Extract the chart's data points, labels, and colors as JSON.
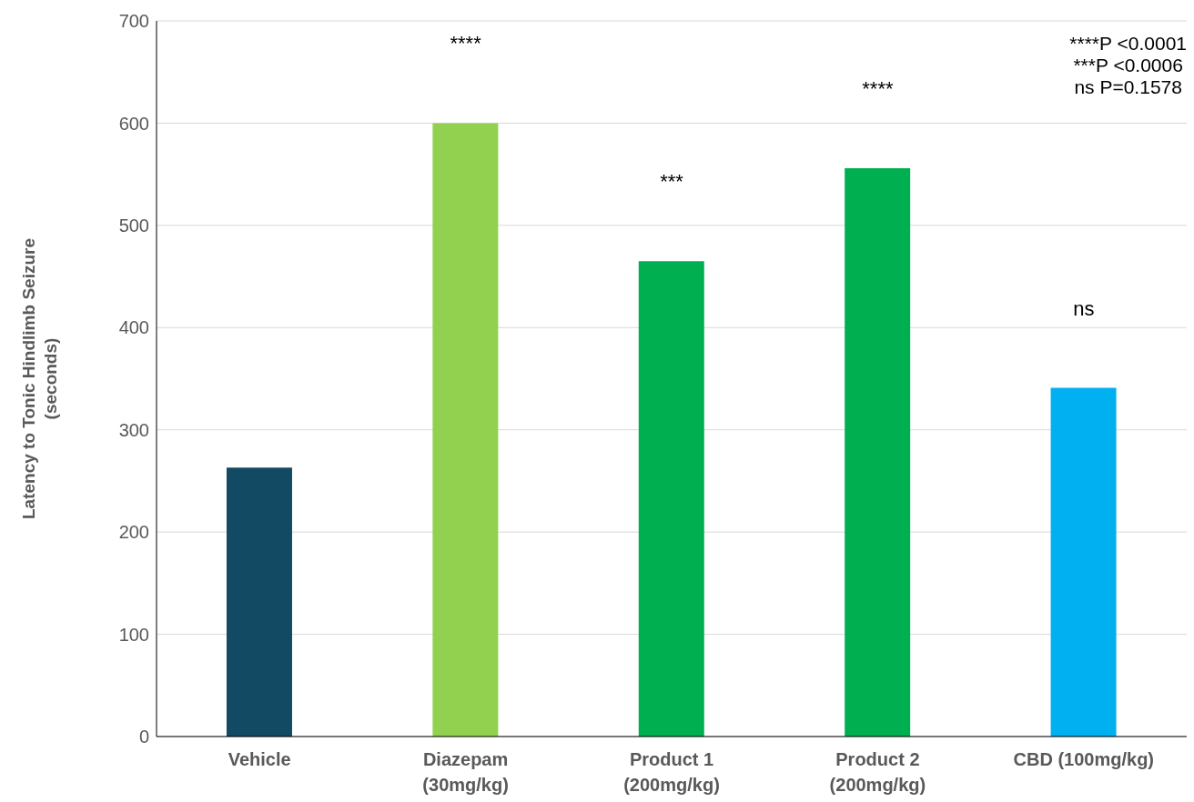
{
  "chart_data": {
    "type": "bar",
    "ylabel": "Latency to Tonic Hindlimb Seizure\n(seconds)",
    "categories": [
      "Vehicle",
      "Diazepam\n(30mg/kg)",
      "Product 1\n(200mg/kg)",
      "Product 2\n(200mg/kg)",
      "CBD (100mg/kg)"
    ],
    "values": [
      263,
      600,
      465,
      556,
      341
    ],
    "colors": [
      "#124a63",
      "#92d050",
      "#00b050",
      "#00b050",
      "#00b0f0"
    ],
    "ylim": [
      0,
      700
    ],
    "yticks": [
      0,
      100,
      200,
      300,
      400,
      500,
      600,
      700
    ],
    "grid": "y",
    "annotations": [
      "****",
      "***",
      "****",
      "ns",
      "****P <0.0001",
      "***P <0.0006",
      "ns P=0.1578"
    ]
  }
}
